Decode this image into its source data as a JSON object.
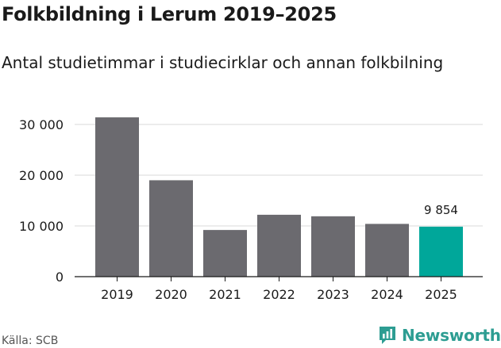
{
  "title": "Folkbildning i Lerum 2019–2025",
  "subtitle": "Antal studietimmar i studiecirklar och annan folkbilning",
  "source": "Källa: SCB",
  "brand": {
    "name": "Newsworthy",
    "icon": "newsworthy-logo-icon"
  },
  "colors": {
    "bar": "#6b6a6f",
    "highlight": "#00a79a",
    "grid": "#d9d9d9",
    "brand": "#2d9d92"
  },
  "chart_data": {
    "type": "bar",
    "title": "Folkbildning i Lerum 2019–2025",
    "subtitle": "Antal studietimmar i studiecirklar och annan folkbilning",
    "categories": [
      "2019",
      "2020",
      "2021",
      "2022",
      "2023",
      "2024",
      "2025"
    ],
    "values": [
      31400,
      19000,
      9200,
      12200,
      11900,
      10400,
      9854
    ],
    "highlight_index": 6,
    "data_labels": [
      {
        "index": 6,
        "text": "9 854"
      }
    ],
    "yticks": [
      0,
      10000,
      20000,
      30000
    ],
    "ytick_labels": [
      "0",
      "10 000",
      "20 000",
      "30 000"
    ],
    "ylim": [
      0,
      33000
    ],
    "xlabel": "",
    "ylabel": "",
    "grid": true
  }
}
